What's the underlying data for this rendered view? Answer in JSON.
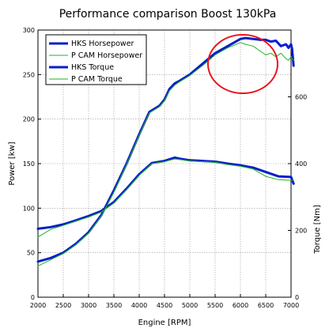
{
  "chart_data": {
    "type": "line",
    "title": "Performance comparison Boost 130kPa",
    "xlabel": "Engine [RPM]",
    "ylabel": "Power [kw]",
    "y2label": "Torque [Nm]",
    "xlim": [
      2000,
      7000
    ],
    "ylim": [
      0,
      300
    ],
    "y2lim": [
      0,
      800
    ],
    "x_ticks": [
      "2000",
      "2500",
      "3000",
      "3500",
      "4000",
      "4500",
      "5000",
      "5500",
      "6000",
      "6500",
      "7000"
    ],
    "y_ticks": [
      "0",
      "50",
      "100",
      "150",
      "200",
      "250",
      "300"
    ],
    "y2_ticks": [
      "0",
      "200",
      "400",
      "600"
    ],
    "grid": true,
    "legend_position": "top-left",
    "series": [
      {
        "name": "HKS Horsepower",
        "axis": "left",
        "color": "#0a1ec8",
        "width": 3,
        "x": [
          2000,
          2250,
          2500,
          2750,
          3000,
          3250,
          3500,
          3750,
          4000,
          4200,
          4400,
          4500,
          4600,
          4700,
          4800,
          5000,
          5250,
          5500,
          5750,
          6000,
          6100,
          6250,
          6400,
          6500,
          6600,
          6700,
          6800,
          6900,
          6950,
          7000,
          7020,
          7050
        ],
        "y": [
          40,
          44,
          50,
          60,
          73,
          92,
          120,
          150,
          183,
          208,
          215,
          222,
          234,
          240,
          243,
          250,
          262,
          274,
          282,
          290,
          291,
          290,
          289,
          289,
          287,
          288,
          282,
          284,
          280,
          284,
          279,
          260
        ]
      },
      {
        "name": "P CAM Horsepower",
        "axis": "left",
        "color": "#22b422",
        "width": 1,
        "x": [
          2000,
          2250,
          2500,
          2750,
          3000,
          3250,
          3500,
          3750,
          4000,
          4200,
          4400,
          4500,
          4600,
          4700,
          4800,
          5000,
          5250,
          5500,
          5750,
          6000,
          6100,
          6250,
          6400,
          6500,
          6600,
          6700,
          6800,
          6900,
          6950,
          7000,
          7020,
          7050
        ],
        "y": [
          35,
          42,
          49,
          59,
          72,
          91,
          118,
          149,
          182,
          207,
          214,
          221,
          232,
          238,
          242,
          249,
          260,
          272,
          280,
          286,
          284,
          282,
          276,
          272,
          274,
          270,
          274,
          268,
          266,
          270,
          268,
          266
        ]
      },
      {
        "name": "HKS Torque",
        "axis": "right",
        "color": "#0a1ec8",
        "width": 3,
        "x": [
          2000,
          2250,
          2500,
          2750,
          3000,
          3250,
          3500,
          3750,
          4000,
          4250,
          4500,
          4700,
          4800,
          5000,
          5250,
          5500,
          5750,
          6000,
          6250,
          6500,
          6750,
          7000,
          7050
        ],
        "y": [
          205,
          210,
          218,
          230,
          243,
          258,
          285,
          325,
          368,
          402,
          408,
          418,
          415,
          410,
          408,
          406,
          400,
          395,
          388,
          375,
          362,
          360,
          340
        ]
      },
      {
        "name": "P CAM Torque",
        "axis": "right",
        "color": "#22b422",
        "width": 1,
        "x": [
          2000,
          2250,
          2500,
          2750,
          3000,
          3250,
          3500,
          3750,
          4000,
          4250,
          4500,
          4700,
          4800,
          5000,
          5250,
          5500,
          5750,
          6000,
          6250,
          6500,
          6750,
          7000,
          7050
        ],
        "y": [
          180,
          203,
          215,
          228,
          240,
          255,
          282,
          322,
          365,
          400,
          406,
          414,
          412,
          408,
          406,
          404,
          397,
          392,
          384,
          362,
          352,
          350,
          350
        ]
      }
    ]
  },
  "annotation": {
    "shape": "circle",
    "color": "#e8141c"
  }
}
